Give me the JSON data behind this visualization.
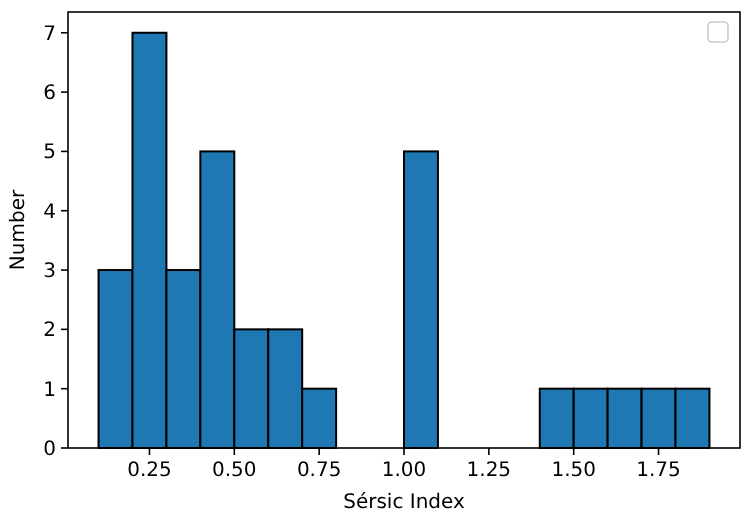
{
  "chart_data": {
    "type": "histogram",
    "xlabel": "Sérsic Index",
    "ylabel": "Number",
    "bins": [
      0.1,
      0.2,
      0.3,
      0.4,
      0.5,
      0.6,
      0.7,
      0.8,
      0.9,
      1.0,
      1.1,
      1.2,
      1.3,
      1.4,
      1.5,
      1.6,
      1.7,
      1.8,
      1.9
    ],
    "values": [
      3,
      7,
      3,
      5,
      2,
      2,
      1,
      0,
      0,
      5,
      0,
      0,
      0,
      1,
      1,
      1,
      1,
      1
    ],
    "color": "#1f77b4",
    "xlim": [
      0.01,
      1.99
    ],
    "ylim": [
      0,
      7.35
    ],
    "xticks": [
      {
        "value": 0.25,
        "label": "0.25"
      },
      {
        "value": 0.5,
        "label": "0.50"
      },
      {
        "value": 0.75,
        "label": "0.75"
      },
      {
        "value": 1.0,
        "label": "1.00"
      },
      {
        "value": 1.25,
        "label": "1.25"
      },
      {
        "value": 1.5,
        "label": "1.50"
      },
      {
        "value": 1.75,
        "label": "1.75"
      }
    ],
    "yticks": [
      0,
      1,
      2,
      3,
      4,
      5,
      6,
      7
    ]
  }
}
